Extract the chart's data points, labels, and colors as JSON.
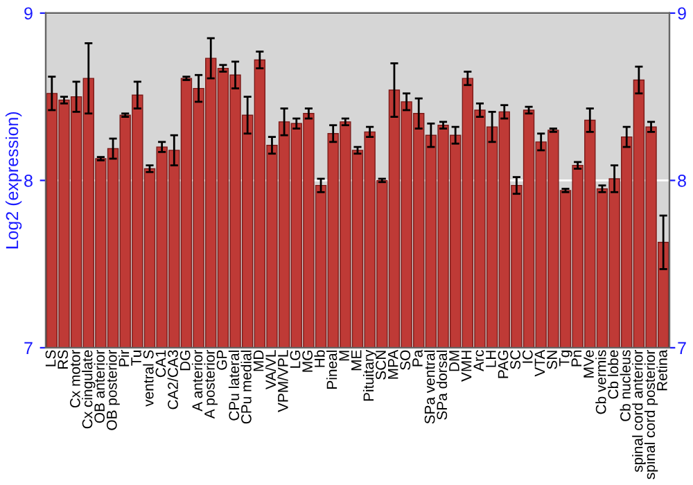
{
  "chart_data": {
    "type": "bar",
    "ylabel": "Log2 (expression)",
    "categories": [
      "LS",
      "RS",
      "Cx motor",
      "Cx cingulate",
      "OB anterior",
      "OB posterior",
      "Pir",
      "Tu",
      "ventral S",
      "CA1",
      "CA2/CA3",
      "DG",
      "A anterior",
      "A posterior",
      "GP",
      "CPu lateral",
      "CPu medial",
      "MD",
      "VA/VL",
      "VPM/VPL",
      "LG",
      "MG",
      "Hb",
      "Pineal",
      "M",
      "ME",
      "Pituitary",
      "SCN",
      "MPA",
      "SO",
      "Pa",
      "SPa ventral",
      "SPa dorsal",
      "DM",
      "VMH",
      "Arc",
      "LH",
      "PAG",
      "SC",
      "IC",
      "VTA",
      "SN",
      "Tg",
      "Pn",
      "MVe",
      "Cb vermis",
      "Cb lobe",
      "Cb nucleus",
      "spinal cord anterior",
      "spinal cord posterior",
      "Retina"
    ],
    "values": [
      8.52,
      8.48,
      8.5,
      8.61,
      8.13,
      8.19,
      8.39,
      8.51,
      8.07,
      8.2,
      8.18,
      8.61,
      8.55,
      8.73,
      8.67,
      8.63,
      8.39,
      8.72,
      8.21,
      8.35,
      8.34,
      8.4,
      7.97,
      8.28,
      8.35,
      8.18,
      8.29,
      8.0,
      8.54,
      8.47,
      8.4,
      8.27,
      8.33,
      8.27,
      8.61,
      8.42,
      8.32,
      8.41,
      7.97,
      8.42,
      8.23,
      8.3,
      7.94,
      8.09,
      8.36,
      7.95,
      8.01,
      8.26,
      8.6,
      8.32,
      7.63
    ],
    "errors": [
      0.1,
      0.02,
      0.09,
      0.21,
      0.01,
      0.06,
      0.01,
      0.08,
      0.02,
      0.03,
      0.09,
      0.01,
      0.08,
      0.12,
      0.02,
      0.08,
      0.11,
      0.05,
      0.05,
      0.08,
      0.03,
      0.03,
      0.04,
      0.05,
      0.02,
      0.02,
      0.03,
      0.01,
      0.16,
      0.05,
      0.09,
      0.07,
      0.02,
      0.05,
      0.04,
      0.04,
      0.09,
      0.04,
      0.05,
      0.02,
      0.05,
      0.01,
      0.01,
      0.02,
      0.07,
      0.02,
      0.08,
      0.06,
      0.08,
      0.03,
      0.16
    ],
    "color": "#bf3a36",
    "ylim": [
      7,
      9
    ],
    "yticks": [
      7,
      8,
      9
    ],
    "y2lim": [
      7,
      9
    ],
    "y2ticks": [
      7,
      8,
      9
    ],
    "grid": "y"
  }
}
